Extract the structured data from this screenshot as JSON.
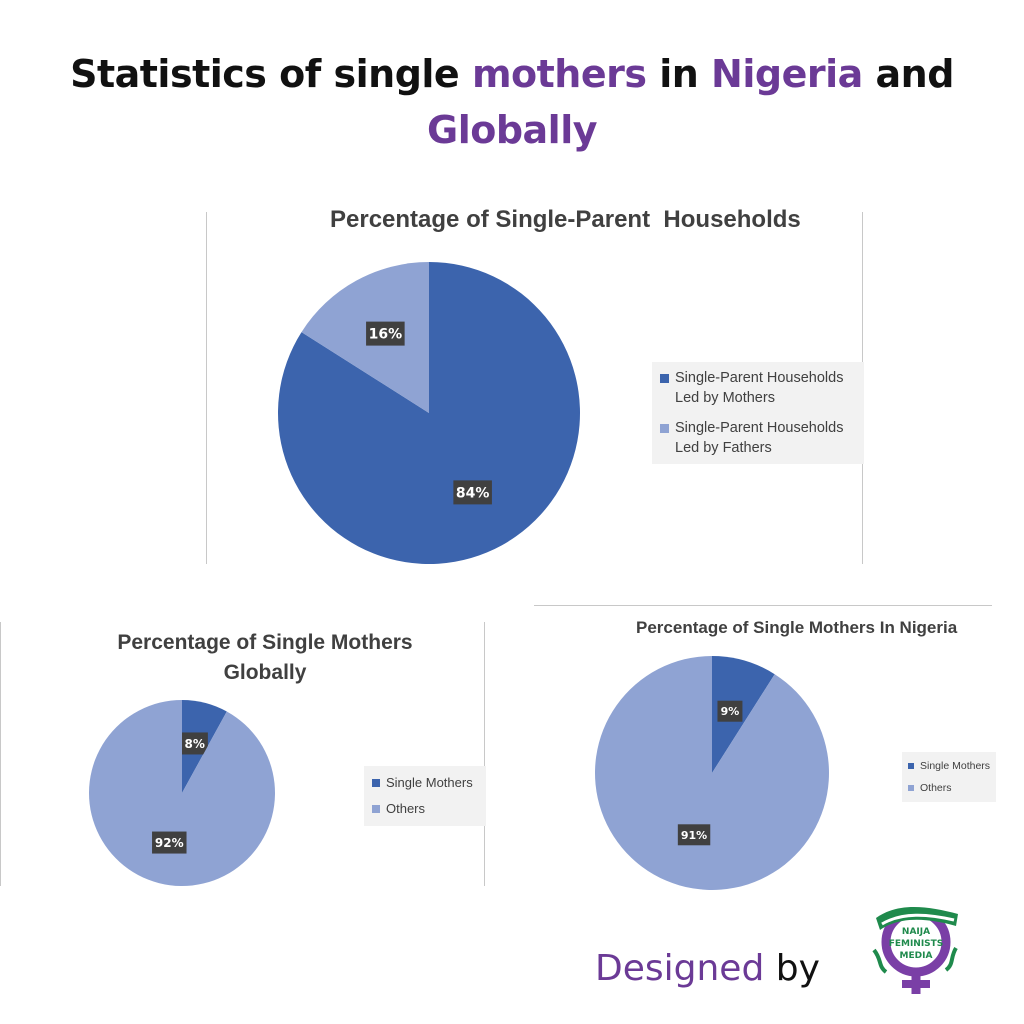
{
  "headline": {
    "line1_part1": "Statistics of single ",
    "line1_highlight1": "mothers",
    "line1_part2": " in ",
    "line1_highlight2": "Nigeria",
    "line1_part3": " and",
    "line2_highlight": "Globally"
  },
  "colors": {
    "accent": "#6b3a96",
    "dark_blue": "#3c64ad",
    "light_blue": "#8fa3d3",
    "label_bg": "#404040"
  },
  "chart_data": [
    {
      "type": "pie",
      "title": "Percentage of Single-Parent  Households",
      "categories": [
        "Single-Parent Households Led by Mothers",
        "Single-Parent Households Led by Fathers"
      ],
      "values": [
        84,
        16
      ],
      "data_labels": [
        "84%",
        "16%"
      ],
      "legend_position": "right"
    },
    {
      "type": "pie",
      "title": "Percentage of Single Mothers Globally",
      "categories": [
        "Single Mothers",
        "Others"
      ],
      "values": [
        8,
        92
      ],
      "data_labels": [
        "8%",
        "92%"
      ],
      "legend_position": "right"
    },
    {
      "type": "pie",
      "title": "Percentage of Single Mothers In Nigeria",
      "categories": [
        "Single Mothers",
        "Others"
      ],
      "values": [
        9,
        91
      ],
      "data_labels": [
        "9%",
        "91%"
      ],
      "legend_position": "right"
    }
  ],
  "footer": {
    "designed_word": "Designed",
    "by_word": " by",
    "logo_text": [
      "NAIJA",
      "FEMINISTS",
      "MEDIA"
    ],
    "logo_icon": "venus-symbol-icon"
  }
}
